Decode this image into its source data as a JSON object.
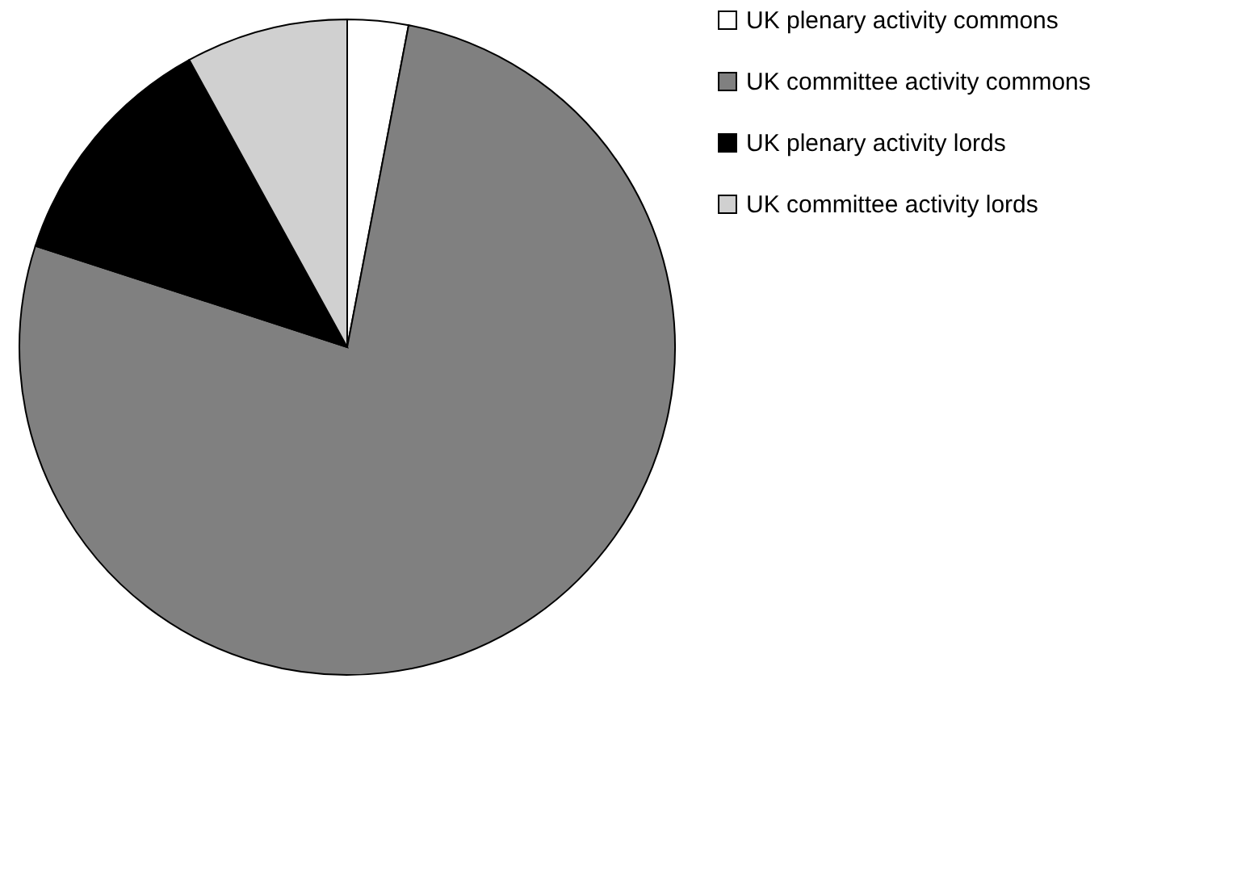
{
  "chart_data": {
    "type": "pie",
    "categories": [
      "UK plenary activity commons",
      "UK committee activity commons",
      "UK plenary activity lords",
      "UK committee activity lords"
    ],
    "values": [
      3,
      77,
      12,
      8
    ],
    "colors": [
      "#ffffff",
      "#808080",
      "#000000",
      "#d0d0d0"
    ],
    "legend": "right"
  }
}
